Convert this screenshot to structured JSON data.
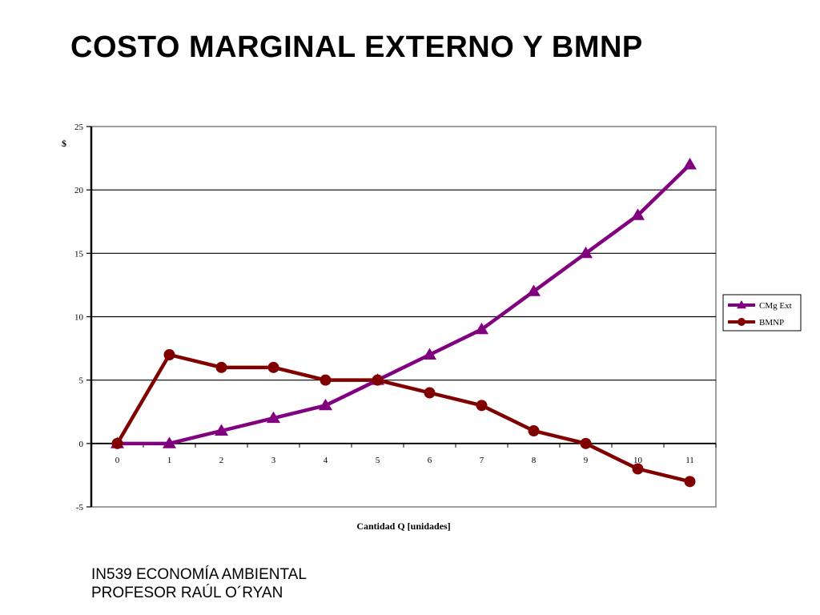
{
  "slide": {
    "title": "COSTO MARGINAL EXTERNO Y BMNP",
    "footer": {
      "course": "IN539 ECONOMÍA AMBIENTAL",
      "professor": "PROFESOR RAÚL O´RYAN"
    }
  },
  "chart_data": {
    "type": "line",
    "title": "",
    "xlabel": "Cantidad Q [unidades]",
    "ylabel": "$",
    "x": [
      0,
      1,
      2,
      3,
      4,
      5,
      6,
      7,
      8,
      9,
      10,
      11
    ],
    "ylim": [
      -5,
      25
    ],
    "yticks": [
      -5,
      0,
      5,
      10,
      15,
      20,
      25
    ],
    "grid": true,
    "legend": "right",
    "series": [
      {
        "name": "CMg Ext",
        "values": [
          0,
          0,
          1,
          2,
          3,
          5,
          7,
          9,
          12,
          15,
          18,
          22
        ],
        "color": "#800080",
        "marker": "triangle"
      },
      {
        "name": "BMNP",
        "values": [
          0,
          7,
          6,
          6,
          5,
          5,
          4,
          3,
          1,
          0,
          -2,
          -3
        ],
        "color": "#800000",
        "marker": "circle"
      }
    ]
  }
}
